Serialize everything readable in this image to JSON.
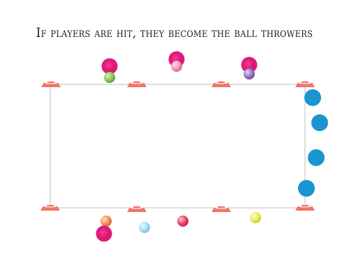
{
  "title": "If players are hit, they become the ball throwers",
  "colors": {
    "field_line": "#c8c8c8",
    "cone": "#f0756c",
    "cone_top": "#ffffff",
    "player_thrower": "#e0197a",
    "player_runner": "#1b95cf"
  },
  "legend": {
    "balls": [
      "green",
      "pink",
      "purple",
      "orange",
      "light-blue",
      "red",
      "yellow"
    ],
    "cone_count": 8,
    "thrower_count": 4,
    "runner_count": 4
  }
}
